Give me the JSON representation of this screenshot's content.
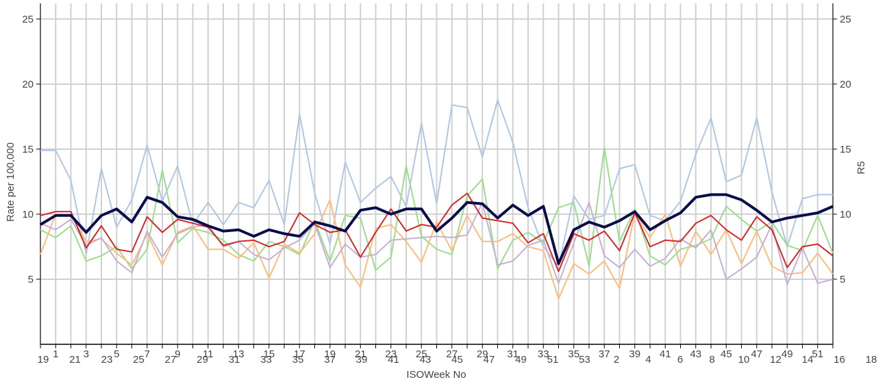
{
  "chart_data": {
    "type": "line",
    "y_label": "Rate per 100,000",
    "y2_label": "R5",
    "x_label": "ISOWeek No",
    "categories": [
      "19",
      "1",
      "21",
      "3",
      "23",
      "5",
      "25",
      "7",
      "27",
      "9",
      "29",
      "11",
      "31",
      "13",
      "33",
      "15",
      "35",
      "17",
      "37",
      "19",
      "39",
      "21",
      "41",
      "23",
      "43",
      "25",
      "45",
      "27",
      "47",
      "29",
      "49",
      "31",
      "51",
      "33",
      "53",
      "35",
      "2",
      "37",
      "4",
      "39",
      "6",
      "41",
      "8",
      "43",
      "10",
      "45",
      "12",
      "47",
      "14",
      "49",
      "16",
      "51",
      "18"
    ],
    "ylim": [
      0,
      26.2
    ],
    "yticks": [
      5,
      10,
      15,
      20,
      25
    ],
    "y2lim": [
      0,
      26.2
    ],
    "y2ticks": [
      5,
      10,
      15,
      20,
      25
    ],
    "grid": true,
    "series": [
      {
        "color": "#aec7e8",
        "width": 2,
        "values": [
          14.9,
          14.9,
          12.6,
          6.9,
          13.5,
          9.0,
          11.1,
          15.3,
          11.0,
          13.7,
          9.2,
          10.9,
          9.2,
          10.9,
          10.5,
          12.6,
          9.2,
          17.7,
          11.6,
          7.7,
          14.0,
          10.9,
          12.0,
          12.9,
          10.6,
          17.0,
          10.8,
          18.4,
          18.2,
          14.4,
          18.8,
          15.5,
          10.5,
          7.5,
          6.0,
          11.4,
          9.6,
          9.9,
          13.5,
          13.8,
          9.9,
          9.5,
          11.0,
          14.6,
          17.4,
          12.5,
          13.0,
          17.4,
          11.7,
          7.5,
          11.2,
          11.5,
          11.5
        ]
      },
      {
        "color": "#98df8a",
        "width": 2,
        "values": [
          8.8,
          8.2,
          9.1,
          6.4,
          6.8,
          7.5,
          5.8,
          7.3,
          13.4,
          7.8,
          8.9,
          8.6,
          8.0,
          6.9,
          6.4,
          7.9,
          7.5,
          6.9,
          9.5,
          6.4,
          9.9,
          9.7,
          5.7,
          6.7,
          13.7,
          8.3,
          7.3,
          6.9,
          11.4,
          12.7,
          5.8,
          8.0,
          8.6,
          7.8,
          10.5,
          10.9,
          6.0,
          15.1,
          7.9,
          10.4,
          6.8,
          6.1,
          7.3,
          7.6,
          8.1,
          10.6,
          9.6,
          8.7,
          9.4,
          7.6,
          7.2,
          9.9,
          7.0
        ]
      },
      {
        "color": "#ffbb78",
        "width": 2,
        "values": [
          6.9,
          10.0,
          9.9,
          7.9,
          8.1,
          7.0,
          6.1,
          8.5,
          6.1,
          8.6,
          9.1,
          7.3,
          7.3,
          6.6,
          7.8,
          5.1,
          7.7,
          7.0,
          8.5,
          11.1,
          6.1,
          4.4,
          8.9,
          9.2,
          7.9,
          6.3,
          9.4,
          7.2,
          9.9,
          7.9,
          7.9,
          8.5,
          7.5,
          7.2,
          3.5,
          6.2,
          5.4,
          6.4,
          4.3,
          10.1,
          8.2,
          10.0,
          6.0,
          8.7,
          6.9,
          8.8,
          6.2,
          8.7,
          6.0,
          5.4,
          5.5,
          7.0,
          5.4
        ]
      },
      {
        "color": "#c5b0d5",
        "width": 2,
        "values": [
          9.3,
          8.8,
          9.6,
          7.6,
          8.2,
          6.4,
          5.5,
          8.7,
          6.7,
          8.5,
          9.0,
          9.2,
          7.5,
          7.9,
          6.9,
          6.5,
          7.4,
          8.0,
          9.3,
          5.9,
          7.7,
          6.7,
          6.9,
          8.0,
          8.1,
          8.2,
          8.3,
          8.2,
          8.4,
          10.9,
          6.1,
          6.4,
          7.6,
          8.0,
          4.7,
          7.8,
          10.9,
          6.8,
          5.9,
          7.3,
          6.0,
          6.6,
          8.1,
          7.4,
          8.8,
          5.0,
          5.8,
          6.7,
          9.2,
          4.6,
          7.4,
          4.7,
          5.0
        ]
      },
      {
        "color": "#d62728",
        "width": 2,
        "values": [
          9.9,
          10.2,
          10.2,
          7.4,
          9.1,
          7.3,
          7.1,
          9.8,
          8.6,
          9.6,
          9.3,
          9.0,
          7.6,
          7.9,
          8.0,
          7.5,
          7.9,
          10.1,
          9.2,
          8.6,
          8.8,
          6.7,
          8.6,
          10.4,
          8.7,
          9.2,
          9.0,
          10.7,
          11.6,
          9.7,
          9.5,
          9.3,
          7.8,
          8.5,
          5.6,
          8.5,
          8.0,
          8.7,
          7.2,
          10.1,
          7.5,
          8.0,
          7.9,
          9.3,
          9.9,
          8.8,
          8.0,
          9.8,
          8.8,
          5.9,
          7.5,
          7.7,
          6.8
        ]
      },
      {
        "color": "#0b0d4a",
        "width": 4,
        "values": [
          9.2,
          9.9,
          9.9,
          8.6,
          9.9,
          10.4,
          9.4,
          11.3,
          10.9,
          9.8,
          9.6,
          9.1,
          8.7,
          8.8,
          8.3,
          8.8,
          8.5,
          8.3,
          9.4,
          9.1,
          8.7,
          10.3,
          10.5,
          10.0,
          10.4,
          10.4,
          8.7,
          9.7,
          10.9,
          10.8,
          9.7,
          10.7,
          9.9,
          10.6,
          6.2,
          8.8,
          9.4,
          9.0,
          9.5,
          10.2,
          8.8,
          9.5,
          10.1,
          11.3,
          11.5,
          11.5,
          11.1,
          10.3,
          9.4,
          9.7,
          9.9,
          10.1,
          10.6
        ]
      }
    ]
  }
}
